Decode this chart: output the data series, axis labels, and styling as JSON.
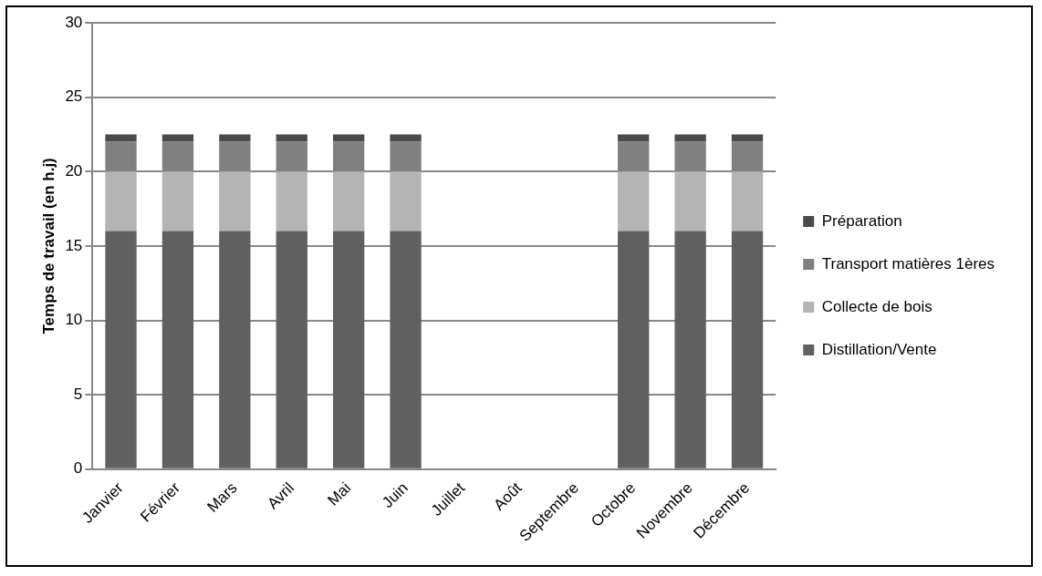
{
  "chart_data": {
    "type": "bar",
    "stacked": true,
    "ylabel": "Temps de travail (en h.j)",
    "categories": [
      "Janvier",
      "Février",
      "Mars",
      "Avril",
      "Mai",
      "Juin",
      "Juillet",
      "Août",
      "Septembre",
      "Octobre",
      "Novembre",
      "Décembre"
    ],
    "series": [
      {
        "name": "Distillation/Vente",
        "color": "#606060",
        "values": [
          16,
          16,
          16,
          16,
          16,
          16,
          0,
          0,
          0,
          16,
          16,
          16
        ]
      },
      {
        "name": "Collecte de bois",
        "color": "#b4b4b4",
        "values": [
          4,
          4,
          4,
          4,
          4,
          4,
          0,
          0,
          0,
          4,
          4,
          4
        ]
      },
      {
        "name": "Transport matières 1ères",
        "color": "#808080",
        "values": [
          2,
          2,
          2,
          2,
          2,
          2,
          0,
          0,
          0,
          2,
          2,
          2
        ]
      },
      {
        "name": "Préparation",
        "color": "#4a4a4a",
        "values": [
          0.5,
          0.5,
          0.5,
          0.5,
          0.5,
          0.5,
          0,
          0,
          0,
          0.5,
          0.5,
          0.5
        ]
      }
    ],
    "ylim": [
      0,
      30
    ],
    "yticks": [
      0,
      5,
      10,
      15,
      20,
      25,
      30
    ],
    "grid": "y",
    "legend": "right"
  }
}
